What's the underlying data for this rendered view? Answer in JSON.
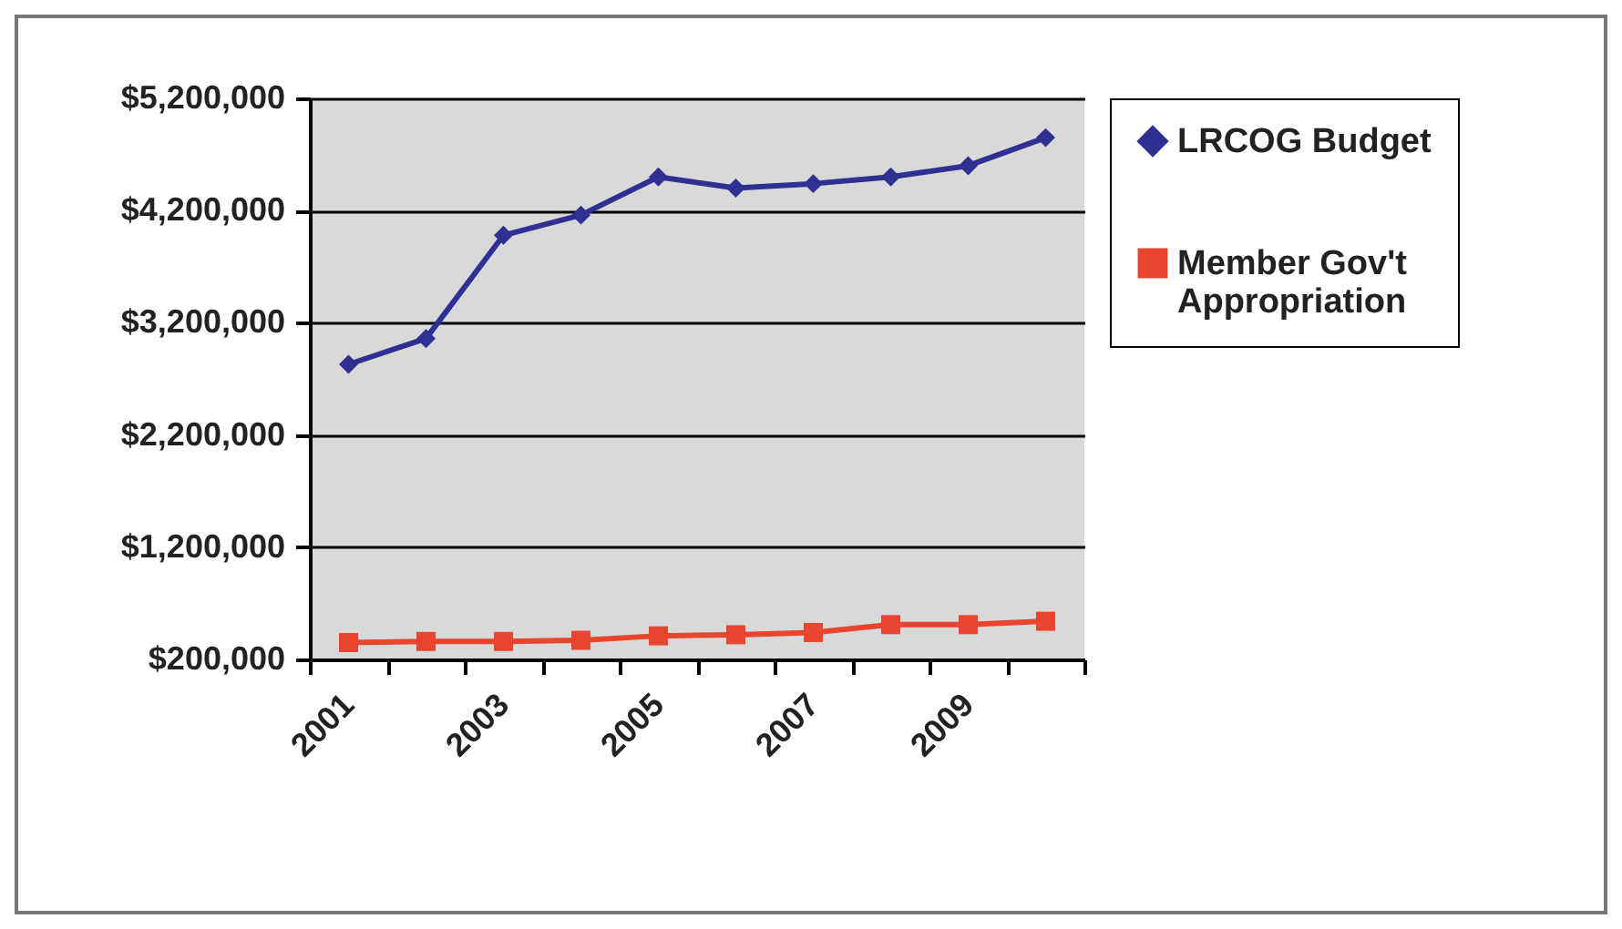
{
  "chart_data": {
    "type": "line",
    "categories": [
      "2001",
      null,
      "2003",
      null,
      "2005",
      null,
      "2007",
      null,
      "2009",
      null
    ],
    "series": [
      {
        "name": "LRCOG Budget",
        "color": "#2e3192",
        "marker": "diamond",
        "values": [
          2830000,
          3060000,
          3980000,
          4160000,
          4500000,
          4400000,
          4440000,
          4500000,
          4600000,
          4850000
        ]
      },
      {
        "name": "Member Gov't Appropriation",
        "color": "#e8452f",
        "marker": "square",
        "values": [
          350000,
          360000,
          360000,
          370000,
          410000,
          420000,
          440000,
          510000,
          510000,
          540000
        ]
      }
    ],
    "ylim": [
      200000,
      5200000
    ],
    "yticks": [
      {
        "value": 200000,
        "label": "$200,000"
      },
      {
        "value": 1200000,
        "label": "$1,200,000"
      },
      {
        "value": 2200000,
        "label": "$2,200,000"
      },
      {
        "value": 3200000,
        "label": "$3,200,000"
      },
      {
        "value": 4200000,
        "label": "$4,200,000"
      },
      {
        "value": 5200000,
        "label": "$5,200,000"
      }
    ],
    "grid": "y",
    "legend": "right"
  }
}
